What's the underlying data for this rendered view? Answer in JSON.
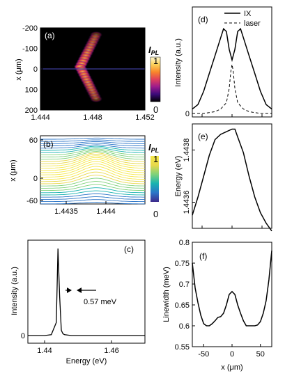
{
  "colors": {
    "line": "#000000",
    "heatmap_bg": "#000000",
    "cmap_a": [
      "#000000",
      "#3b0a7a",
      "#9c1a8c",
      "#e0405c",
      "#f9872a",
      "#fbd15a",
      "#fff8d0"
    ],
    "cmap_b": [
      "#3d2a8c",
      "#2b75c8",
      "#19b3b0",
      "#7fd27a",
      "#e8d84a",
      "#f5e84a"
    ]
  },
  "chart_data": [
    {
      "panel": "(a)",
      "type": "heatmap",
      "ylabel": "x (μm)",
      "xticks": [
        "1.444",
        "1.448",
        "1.452"
      ],
      "xlim": [
        1.444,
        1.452
      ],
      "yticks": [
        "-200",
        "-100",
        "0",
        "100",
        "200"
      ],
      "ylim": [
        -200,
        200
      ],
      "colorbar": {
        "label": "I",
        "label_sub": "PL",
        "max": "1",
        "min": "0"
      }
    },
    {
      "panel": "(b)",
      "type": "line",
      "ylabel": "x (μm)",
      "xticks": [
        "1.4435",
        "1.444"
      ],
      "yticks": [
        "60",
        "0",
        "-60"
      ],
      "colorbar": {
        "label": "I",
        "label_sub": "PL",
        "max": "1",
        "min": "0"
      }
    },
    {
      "panel": "(c)",
      "type": "line",
      "xlabel": "Energy (eV)",
      "ylabel": "Intensity (a.u.)",
      "xticks": [
        "1.44",
        "1.46"
      ],
      "xlim": [
        1.435,
        1.47
      ],
      "yticks": [
        "0"
      ],
      "annotation": "0.57 meV",
      "series": [
        {
          "x": [
            1.435,
            1.44,
            1.442,
            1.4435,
            1.444,
            1.4445,
            1.445,
            1.4455,
            1.446,
            1.448,
            1.452,
            1.46,
            1.47
          ],
          "y": [
            0.0,
            0.0,
            0.01,
            0.15,
            1.0,
            0.45,
            0.06,
            0.02,
            0.01,
            0.0,
            0.0,
            0.0,
            0.0
          ]
        }
      ]
    },
    {
      "panel": "(d)",
      "type": "line",
      "ylabel": "Intensity (a.u.)",
      "yticks": [
        "0"
      ],
      "xlim": [
        -70,
        70
      ],
      "series": [
        {
          "name": "IX",
          "x": [
            -70,
            -60,
            -50,
            -40,
            -30,
            -20,
            -15,
            -10,
            -5,
            0,
            5,
            10,
            15,
            20,
            30,
            40,
            50,
            60,
            70
          ],
          "y": [
            0.05,
            0.1,
            0.25,
            0.45,
            0.65,
            0.85,
            0.95,
            0.92,
            0.72,
            0.6,
            0.72,
            0.92,
            0.95,
            0.85,
            0.65,
            0.45,
            0.25,
            0.1,
            0.05
          ]
        },
        {
          "name": "laser",
          "x": [
            -70,
            -50,
            -30,
            -20,
            -10,
            -5,
            -2,
            0,
            2,
            5,
            10,
            20,
            30,
            50,
            70
          ],
          "y": [
            0.0,
            0.0,
            0.02,
            0.05,
            0.12,
            0.28,
            0.48,
            0.55,
            0.48,
            0.28,
            0.12,
            0.05,
            0.02,
            0.0,
            0.0
          ]
        }
      ]
    },
    {
      "panel": "(e)",
      "type": "line",
      "ylabel": "Energy (eV)",
      "yticks": [
        "1.4438",
        "1.4436"
      ],
      "xlim": [
        -70,
        70
      ],
      "ylim": [
        1.4435,
        1.4439
      ],
      "series": [
        {
          "x": [
            -70,
            -60,
            -50,
            -40,
            -30,
            -20,
            -10,
            0,
            5,
            10,
            20,
            30,
            40,
            50,
            60,
            70
          ],
          "y": [
            1.44355,
            1.44362,
            1.4437,
            1.44378,
            1.44384,
            1.44386,
            1.44387,
            1.44388,
            1.44388,
            1.44385,
            1.44379,
            1.4437,
            1.44362,
            1.44356,
            1.44352,
            1.44349
          ]
        }
      ]
    },
    {
      "panel": "(f)",
      "type": "line",
      "xlabel": "x (μm)",
      "ylabel": "Linewidth (meV)",
      "xticks": [
        "-50",
        "0",
        "50"
      ],
      "xlim": [
        -70,
        70
      ],
      "yticks": [
        "0.8",
        "0.75",
        "0.7",
        "0.65",
        "0.6",
        "0.55"
      ],
      "ylim": [
        0.55,
        0.8
      ],
      "series": [
        {
          "x": [
            -70,
            -65,
            -60,
            -55,
            -50,
            -45,
            -40,
            -35,
            -30,
            -25,
            -20,
            -15,
            -10,
            -5,
            0,
            5,
            10,
            15,
            20,
            25,
            30,
            35,
            40,
            45,
            50,
            55,
            60,
            65,
            70
          ],
          "y": [
            0.75,
            0.69,
            0.655,
            0.625,
            0.605,
            0.6,
            0.6,
            0.605,
            0.612,
            0.62,
            0.622,
            0.63,
            0.65,
            0.675,
            0.682,
            0.675,
            0.65,
            0.63,
            0.612,
            0.6,
            0.6,
            0.6,
            0.6,
            0.602,
            0.61,
            0.63,
            0.66,
            0.71,
            0.78
          ]
        }
      ]
    }
  ],
  "legend_d": [
    "IX",
    "laser"
  ]
}
